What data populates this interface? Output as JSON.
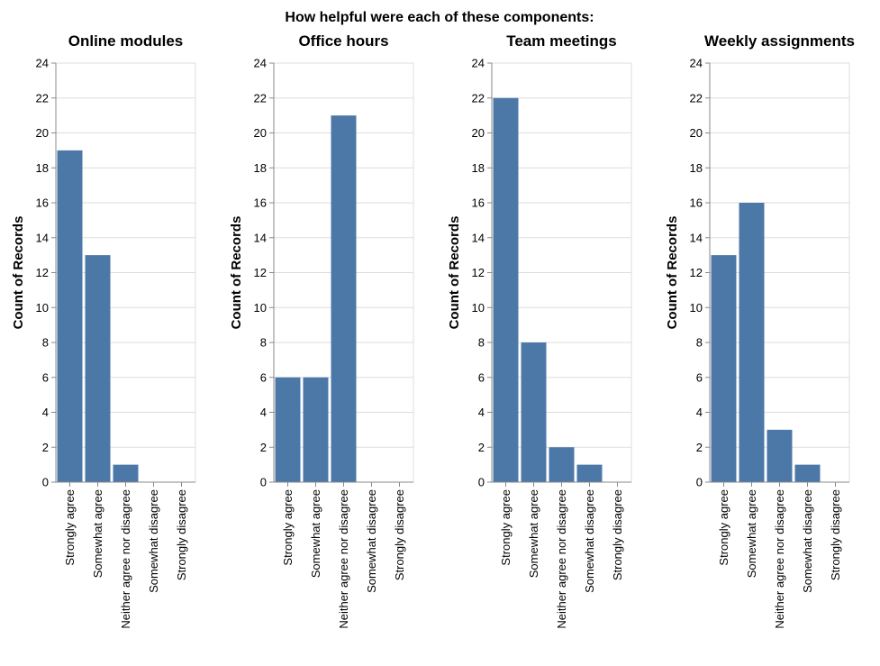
{
  "chart_data": {
    "type": "bar",
    "title": "How helpful were each of these components:",
    "ylabel": "Count of Records",
    "ylim": [
      0,
      24
    ],
    "yticks": [
      0,
      2,
      4,
      6,
      8,
      10,
      12,
      14,
      16,
      18,
      20,
      22,
      24
    ],
    "grid": true,
    "bar_color": "#4c78a8",
    "categories": [
      "Strongly agree",
      "Somewhat agree",
      "Neither agree nor disagree",
      "Somewhat disagree",
      "Strongly disagree"
    ],
    "facets": [
      {
        "name": "Online modules",
        "values": [
          19,
          13,
          1,
          0,
          0
        ]
      },
      {
        "name": "Office hours",
        "values": [
          6,
          6,
          21,
          0,
          0
        ]
      },
      {
        "name": "Team meetings",
        "values": [
          22,
          8,
          2,
          1,
          0
        ]
      },
      {
        "name": "Weekly assignments",
        "values": [
          13,
          16,
          3,
          1,
          0
        ]
      }
    ]
  }
}
